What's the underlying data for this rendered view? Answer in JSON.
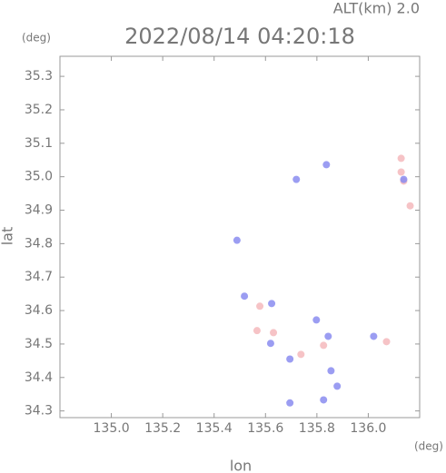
{
  "chart_data": {
    "type": "scatter",
    "altitude_label": "ALT(km) 2.0",
    "title": "2022/08/14 04:20:18",
    "y_unit": "(deg)",
    "x_unit": "(deg)",
    "x_label": "lon",
    "y_label": "lat",
    "xlim": [
      134.8,
      136.2
    ],
    "ylim": [
      34.28,
      35.36
    ],
    "xticks": [
      {
        "value": 135.0,
        "label": "135.0"
      },
      135.2,
      135.4,
      135.6,
      135.8,
      {
        "value": 136.0,
        "label": "136.0"
      }
    ],
    "yticks": [
      34.3,
      34.4,
      34.5,
      34.6,
      34.7,
      34.8,
      34.9,
      {
        "value": 35.0,
        "label": "35.0"
      },
      35.1,
      35.2,
      35.3
    ],
    "series": [
      {
        "color": "#f5b8bc",
        "x": [
          136.128,
          136.128,
          136.138,
          136.163,
          136.071,
          135.631,
          135.738,
          135.826,
          135.578,
          135.567
        ],
        "y": [
          35.055,
          35.014,
          34.987,
          34.913,
          34.507,
          34.534,
          34.469,
          34.496,
          34.613,
          34.54
        ]
      },
      {
        "color": "#8a8cf0",
        "x": [
          136.138,
          135.837,
          135.72,
          135.489,
          135.518,
          135.624,
          135.62,
          135.695,
          135.844,
          135.855,
          135.879,
          135.826,
          135.695,
          136.021,
          135.798
        ],
        "y": [
          34.992,
          35.036,
          34.992,
          34.81,
          34.643,
          34.621,
          34.502,
          34.455,
          34.523,
          34.42,
          34.374,
          34.333,
          34.324,
          34.523,
          34.572
        ]
      }
    ]
  }
}
